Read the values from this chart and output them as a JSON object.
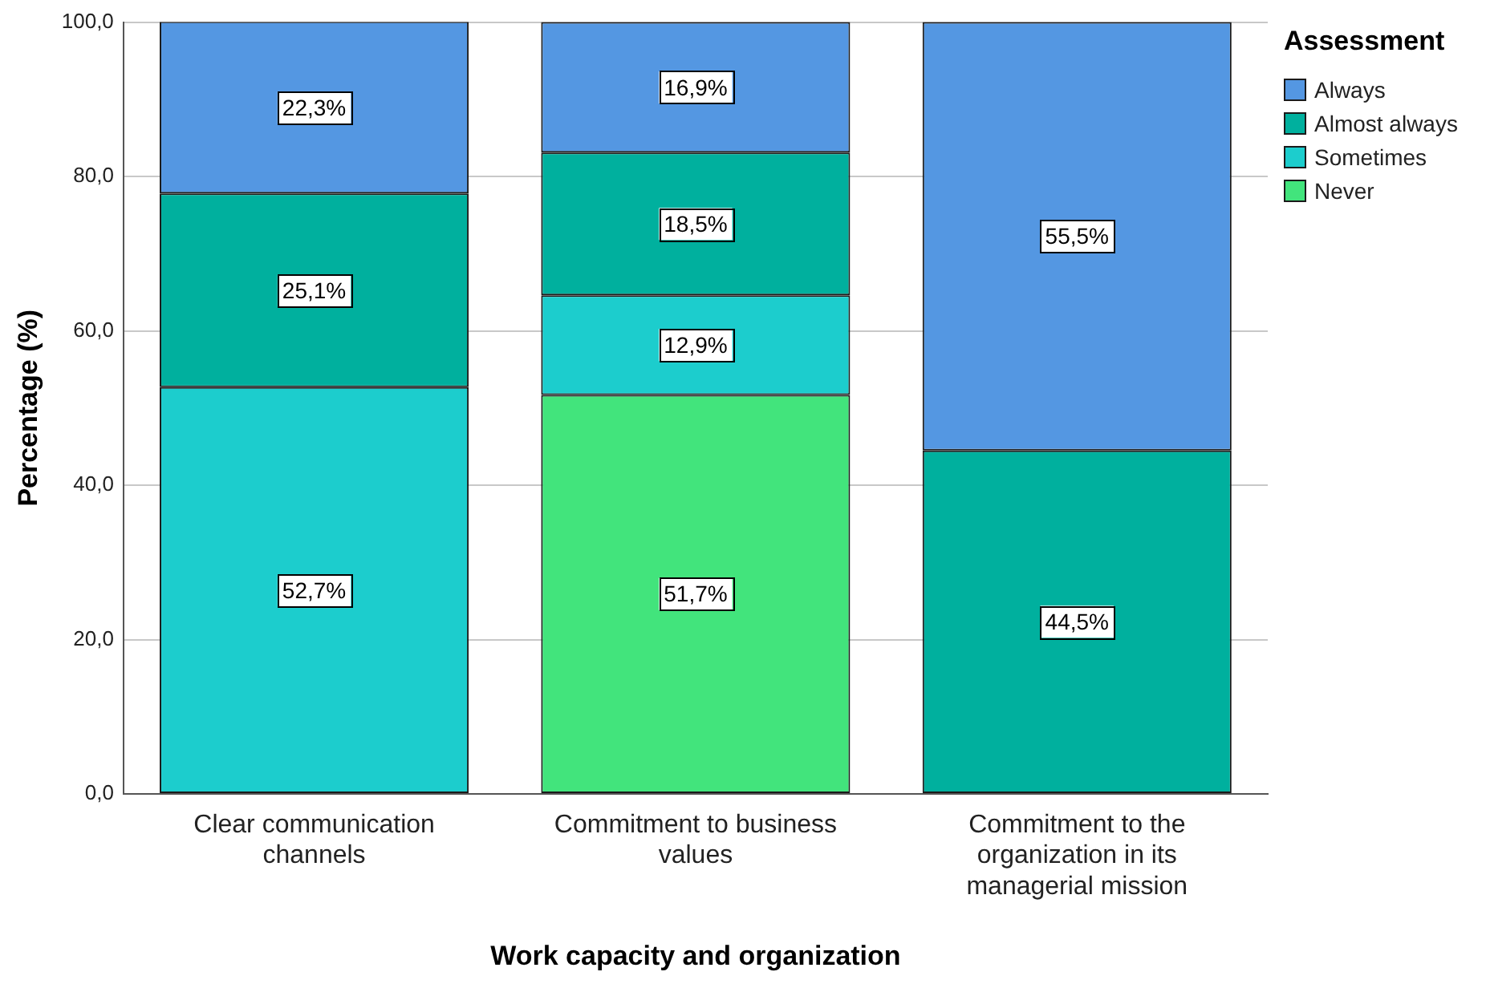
{
  "chart_data": {
    "type": "bar",
    "stacked": true,
    "xlabel": "Work capacity and organization",
    "ylabel": "Percentage (%)",
    "legend_title": "Assessment",
    "legend": "top right",
    "categories": [
      "Clear communication channels",
      "Commitment to business values",
      "Commitment to the organization in its managerial mission"
    ],
    "series": [
      {
        "name": "Never",
        "color": "#42e47c",
        "values": [
          null,
          51.7,
          null
        ],
        "value_labels": [
          null,
          "51,7%",
          null
        ]
      },
      {
        "name": "Sometimes",
        "color": "#1ccdcd",
        "values": [
          52.7,
          12.9,
          null
        ],
        "value_labels": [
          "52,7%",
          "12,9%",
          null
        ]
      },
      {
        "name": "Almost always",
        "color": "#00b09e",
        "values": [
          25.1,
          18.5,
          44.5
        ],
        "value_labels": [
          "25,1%",
          "18,5%",
          "44,5%"
        ]
      },
      {
        "name": "Always",
        "color": "#5497e2",
        "values": [
          22.3,
          16.9,
          55.5
        ],
        "value_labels": [
          "22,3%",
          "16,9%",
          "55,5%"
        ]
      }
    ],
    "ylim": [
      0,
      100
    ],
    "yticks": [
      {
        "value": 0,
        "label": "0,0"
      },
      {
        "value": 20,
        "label": "20,0"
      },
      {
        "value": 40,
        "label": "40,0"
      },
      {
        "value": 60,
        "label": "60,0"
      },
      {
        "value": 80,
        "label": "80,0"
      },
      {
        "value": 100,
        "label": "100,0"
      }
    ],
    "grid": "y"
  }
}
